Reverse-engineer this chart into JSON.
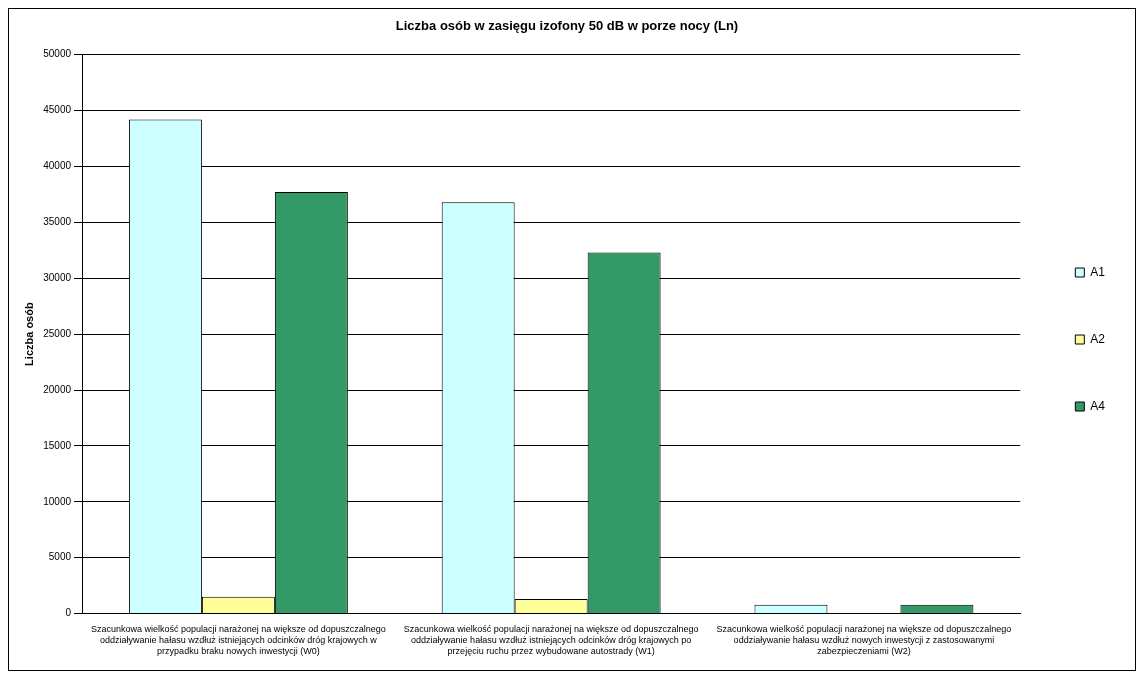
{
  "chart_data": {
    "type": "bar",
    "title": "Liczba osób w zasięgu izofony 50 dB w porze nocy (Ln)",
    "ylabel": "Liczba osób",
    "categories": [
      "Szacunkowa wielkość populacji narażonej na większe od dopuszczalnego oddziaływanie hałasu wzdłuż istniejących odcinków dróg krajowych w przypadku braku nowych inwestycji (W0)",
      "Szacunkowa wielkość populacji narażonej na większe od dopuszczalnego oddziaływanie hałasu wzdłuż istniejących odcinków dróg krajowych po przejęciu ruchu przez wybudowane autostrady (W1)",
      "Szacunkowa wielkość populacji narażonej na większe od dopuszczalnego oddziaływanie hałasu wzdłuż nowych inwestycji z zastosowanymi zabezpieczeniami (W2)"
    ],
    "series": [
      {
        "name": "A1",
        "color": "#ccffff",
        "values": [
          44200,
          36800,
          800
        ]
      },
      {
        "name": "A2",
        "color": "#ffff99",
        "values": [
          1500,
          1300,
          0
        ]
      },
      {
        "name": "A4",
        "color": "#339966",
        "values": [
          37700,
          32300,
          800
        ]
      }
    ],
    "ylim": [
      0,
      50000
    ],
    "yticks": [
      0,
      5000,
      10000,
      15000,
      20000,
      25000,
      30000,
      35000,
      40000,
      45000,
      50000
    ],
    "grid": "y",
    "legend": "right"
  }
}
